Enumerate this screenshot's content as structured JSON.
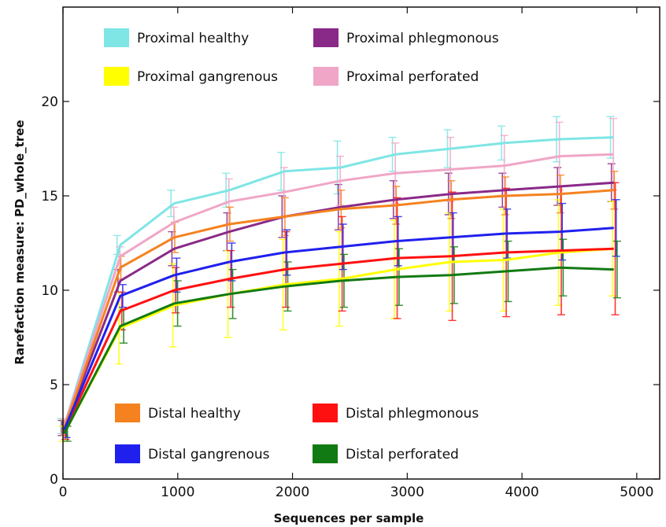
{
  "chart_data": {
    "type": "line",
    "title": "",
    "xlabel": "Sequences per sample",
    "ylabel": "Rarefaction measure: PD_whole_tree",
    "xlim": [
      0,
      5200
    ],
    "ylim": [
      0,
      25
    ],
    "xticks": [
      0,
      1000,
      2000,
      3000,
      4000,
      5000
    ],
    "yticks": [
      0,
      5,
      10,
      15,
      20
    ],
    "grid": false,
    "legend_placement": "top-left and bottom-left",
    "x": [
      10,
      500,
      970,
      1450,
      1930,
      2420,
      2900,
      3380,
      3850,
      4330,
      4800
    ],
    "series": [
      {
        "name": "Proximal healthy",
        "color": "#7fe5e5",
        "legend_group": "top",
        "values": [
          2.8,
          12.4,
          14.6,
          15.3,
          16.3,
          16.5,
          17.2,
          17.5,
          17.8,
          18.0,
          18.1
        ],
        "err": [
          0.4,
          0.5,
          0.7,
          0.9,
          1.0,
          1.4,
          0.9,
          1.0,
          0.9,
          1.2,
          1.1
        ]
      },
      {
        "name": "Proximal phlegmonous",
        "color": "#8a2a88",
        "legend_group": "top",
        "values": [
          2.7,
          10.5,
          12.2,
          13.1,
          13.9,
          14.4,
          14.8,
          15.1,
          15.3,
          15.5,
          15.7
        ],
        "err": [
          0.4,
          0.6,
          0.9,
          1.0,
          1.1,
          1.2,
          1.0,
          1.1,
          0.9,
          1.0,
          1.0
        ]
      },
      {
        "name": "Proximal gangrenous",
        "color": "#ffff00",
        "legend_group": "top",
        "values": [
          2.4,
          8.0,
          9.2,
          9.8,
          10.3,
          10.6,
          11.1,
          11.5,
          11.6,
          12.0,
          12.2
        ],
        "err": [
          0.4,
          1.9,
          2.2,
          2.3,
          2.4,
          2.5,
          2.6,
          2.6,
          2.7,
          2.8,
          2.5
        ]
      },
      {
        "name": "Proximal perforated",
        "color": "#f0a6c6",
        "legend_group": "top",
        "values": [
          2.8,
          11.8,
          13.6,
          14.7,
          15.2,
          15.8,
          16.2,
          16.4,
          16.6,
          17.1,
          17.2
        ],
        "err": [
          0.4,
          0.5,
          0.8,
          1.2,
          1.3,
          1.3,
          1.6,
          1.7,
          1.6,
          1.8,
          1.9
        ]
      },
      {
        "name": "Distal healthy",
        "color": "#f5821f",
        "legend_group": "bottom",
        "values": [
          2.7,
          11.2,
          12.8,
          13.5,
          13.9,
          14.3,
          14.5,
          14.8,
          15.0,
          15.1,
          15.3
        ],
        "err": [
          0.4,
          0.6,
          0.8,
          0.9,
          1.0,
          1.0,
          1.0,
          1.0,
          1.0,
          1.0,
          1.0
        ]
      },
      {
        "name": "Distal phlegmonous",
        "color": "#ff1010",
        "legend_group": "bottom",
        "values": [
          2.5,
          8.9,
          10.0,
          10.6,
          11.1,
          11.4,
          11.7,
          11.8,
          12.0,
          12.1,
          12.2
        ],
        "err": [
          0.4,
          1.0,
          1.2,
          1.5,
          2.0,
          2.5,
          3.2,
          3.4,
          3.4,
          3.4,
          3.5
        ]
      },
      {
        "name": "Distal gangrenous",
        "color": "#2020ee",
        "legend_group": "bottom",
        "values": [
          2.6,
          9.7,
          10.8,
          11.5,
          12.0,
          12.3,
          12.6,
          12.8,
          13.0,
          13.1,
          13.3
        ],
        "err": [
          0.4,
          0.6,
          0.9,
          1.0,
          1.2,
          1.2,
          1.3,
          1.3,
          1.3,
          1.5,
          1.5
        ]
      },
      {
        "name": "Distal perforated",
        "color": "#127a12",
        "legend_group": "bottom",
        "values": [
          2.4,
          8.1,
          9.3,
          9.8,
          10.2,
          10.5,
          10.7,
          10.8,
          11.0,
          11.2,
          11.1
        ],
        "err": [
          0.4,
          0.9,
          1.2,
          1.3,
          1.3,
          1.4,
          1.5,
          1.5,
          1.6,
          1.5,
          1.5
        ]
      }
    ]
  }
}
